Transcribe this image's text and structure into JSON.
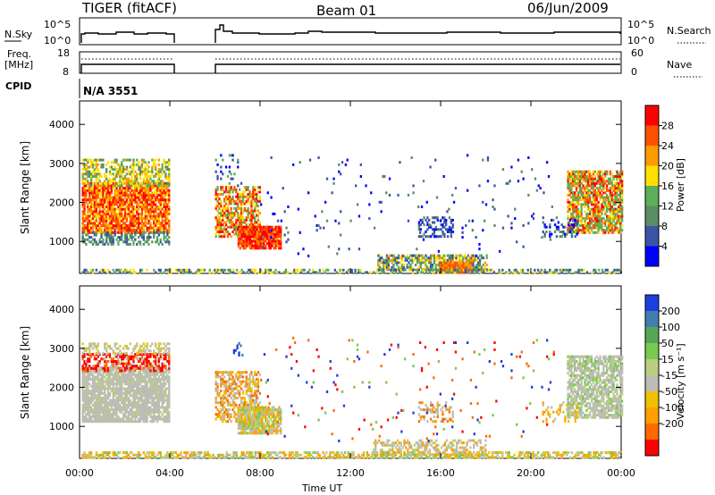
{
  "header": {
    "title": "TIGER (fitACF)",
    "beam": "Beam 01",
    "date": "06/Jun/2009"
  },
  "top_panels": {
    "nsky_label": "N.Sky",
    "nsky_ticks": [
      "10^5",
      "10^0"
    ],
    "nsearch_label": "N.Search",
    "nsearch_ticks": [
      "10^5",
      "10^0"
    ],
    "freq_label_1": "Freq.",
    "freq_label_2": "[MHz]",
    "freq_ticks": [
      "18",
      "8"
    ],
    "nave_label": "Nave",
    "nave_ticks": [
      "60",
      "0"
    ],
    "cpid_label": "CPID",
    "cpid_value": "N/A 3551"
  },
  "colors": {
    "power": [
      "#0000ff",
      "#3a55a5",
      "#5b8c63",
      "#5bb05b",
      "#ffe000",
      "#ff9a00",
      "#ff5000",
      "#ff0000"
    ],
    "velocity": [
      "#ff0000",
      "#ff6a00",
      "#ffa000",
      "#f0c000",
      "#bdbdb5",
      "#b8d080",
      "#7ac950",
      "#57a657",
      "#4080b0",
      "#1e3fe0"
    ]
  },
  "chart_data": [
    {
      "type": "heatmap",
      "name": "power",
      "xlabel": "Time UT",
      "ylabel": "Slant Range [km]",
      "xlim": [
        0,
        24
      ],
      "ylim": [
        180,
        4600
      ],
      "x_ticks": [
        "00:00",
        "04:00",
        "08:00",
        "12:00",
        "16:00",
        "20:00",
        "00:00"
      ],
      "y_ticks": [
        "1000",
        "2000",
        "3000",
        "4000"
      ],
      "colorbar_label": "Power [dB]",
      "colorbar_ticks": [
        "4",
        "8",
        "12",
        "16",
        "20",
        "24",
        "28"
      ],
      "grid": false
    },
    {
      "type": "heatmap",
      "name": "velocity",
      "xlabel": "Time UT",
      "ylabel": "Slant Range [km]",
      "xlim": [
        0,
        24
      ],
      "ylim": [
        180,
        4600
      ],
      "x_ticks": [
        "00:00",
        "04:00",
        "08:00",
        "12:00",
        "16:00",
        "20:00",
        "00:00"
      ],
      "y_ticks": [
        "1000",
        "2000",
        "3000",
        "4000"
      ],
      "colorbar_label": "Velocity [m s⁻¹]",
      "colorbar_ticks": [
        "200",
        "100",
        "50",
        "15",
        "-15",
        "-50",
        "-100",
        "-200"
      ],
      "grid": false
    }
  ]
}
